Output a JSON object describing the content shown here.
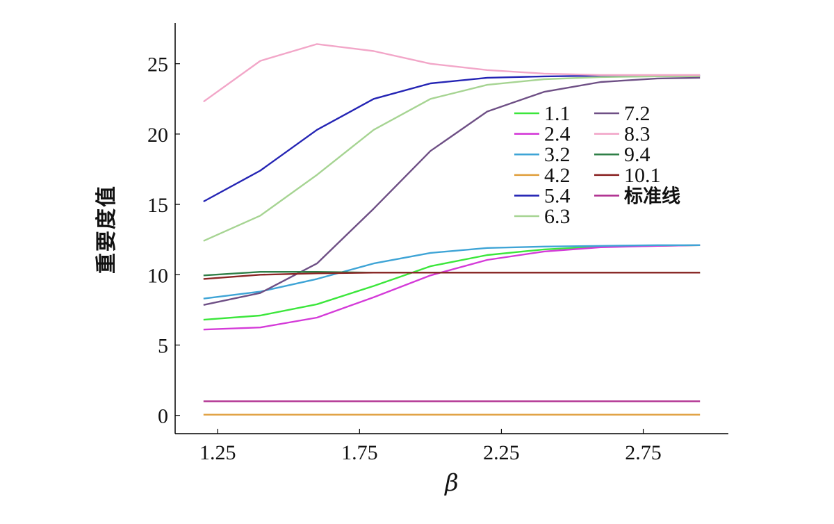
{
  "chart_data": {
    "type": "line",
    "title": "",
    "xlabel": "β",
    "ylabel": "重要度值",
    "xlim": [
      1.1,
      3.05
    ],
    "ylim": [
      -1.3,
      27.9
    ],
    "xticks": [
      "1.25",
      "1.75",
      "2.25",
      "2.75"
    ],
    "xtick_values": [
      1.25,
      1.75,
      2.25,
      2.75
    ],
    "yticks": [
      "0",
      "5",
      "10",
      "15",
      "20",
      "25"
    ],
    "ytick_values": [
      0,
      5,
      10,
      15,
      20,
      25
    ],
    "grid": false,
    "legend_position": "upper-right",
    "x": [
      1.2,
      1.4,
      1.6,
      1.8,
      2.0,
      2.2,
      2.4,
      2.6,
      2.8,
      2.95
    ],
    "series": [
      {
        "name": "1.1",
        "color": "#3be63b",
        "values": [
          6.8,
          7.1,
          7.9,
          9.2,
          10.6,
          11.4,
          11.8,
          12.0,
          12.05,
          12.1
        ]
      },
      {
        "name": "2.4",
        "color": "#d43ad8",
        "values": [
          6.1,
          6.25,
          6.95,
          8.4,
          9.95,
          11.05,
          11.65,
          11.95,
          12.05,
          12.1
        ]
      },
      {
        "name": "3.2",
        "color": "#3ea4d6",
        "values": [
          8.3,
          8.8,
          9.7,
          10.8,
          11.55,
          11.9,
          12.0,
          12.05,
          12.1,
          12.1
        ]
      },
      {
        "name": "4.2",
        "color": "#e0a040",
        "values": [
          0.05,
          0.05,
          0.05,
          0.05,
          0.05,
          0.05,
          0.05,
          0.05,
          0.05,
          0.05
        ]
      },
      {
        "name": "5.4",
        "color": "#2424b4",
        "values": [
          15.2,
          17.4,
          20.3,
          22.5,
          23.6,
          24.0,
          24.1,
          24.15,
          24.15,
          24.15
        ]
      },
      {
        "name": "6.3",
        "color": "#a6d492",
        "values": [
          12.4,
          14.2,
          17.1,
          20.3,
          22.5,
          23.5,
          23.9,
          24.05,
          24.1,
          24.1
        ]
      },
      {
        "name": "7.2",
        "color": "#6e4f85",
        "values": [
          7.85,
          8.7,
          10.8,
          14.7,
          18.8,
          21.6,
          23.0,
          23.7,
          23.95,
          24.0
        ]
      },
      {
        "name": "8.3",
        "color": "#f2a6c8",
        "values": [
          22.3,
          25.2,
          26.4,
          25.9,
          25.0,
          24.55,
          24.3,
          24.2,
          24.2,
          24.2
        ]
      },
      {
        "name": "9.4",
        "color": "#2f7f47",
        "values": [
          9.95,
          10.2,
          10.2,
          10.15,
          10.15,
          10.15,
          10.15,
          10.15,
          10.15,
          10.15
        ]
      },
      {
        "name": "10.1",
        "color": "#8b2525",
        "values": [
          9.7,
          10.0,
          10.1,
          10.15,
          10.15,
          10.15,
          10.15,
          10.15,
          10.15,
          10.15
        ]
      },
      {
        "name": "标准线",
        "color": "#b03090",
        "values": [
          1.0,
          1.0,
          1.0,
          1.0,
          1.0,
          1.0,
          1.0,
          1.0,
          1.0,
          1.0
        ]
      }
    ]
  }
}
